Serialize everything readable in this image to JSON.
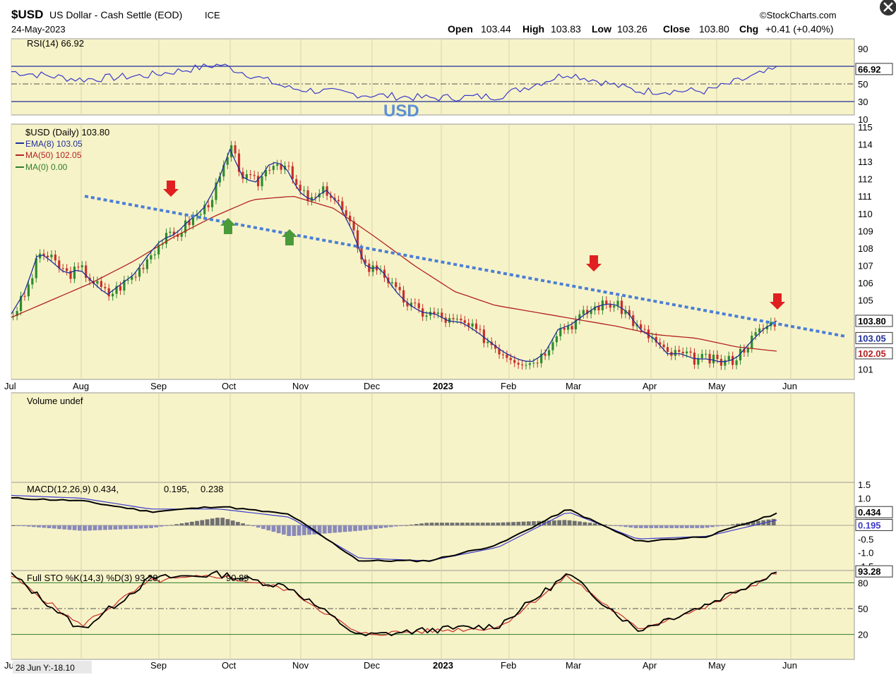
{
  "header": {
    "symbol": "$USD",
    "name": "US Dollar - Cash Settle (EOD)",
    "exchange": "ICE",
    "date": "24-May-2023",
    "brand": "©StockCharts.com",
    "ohlc": {
      "open_label": "Open",
      "open": "103.44",
      "high_label": "High",
      "high": "103.83",
      "low_label": "Low",
      "low": "103.26",
      "close_label": "Close",
      "close": "103.80",
      "chg_label": "Chg",
      "chg": "+0.41 (+0.40%)"
    }
  },
  "annotation": "USD",
  "status_readout": "28 Jun Y:-18.10",
  "legend": {
    "rsi": "RSI(14) 66.92",
    "price": "$USD (Daily) 103.80",
    "ema": "EMA(8) 103.05",
    "ma50": "MA(50) 102.05",
    "ma0": "MA(0) 0.00",
    "volume": "Volume undef",
    "macd": "MACD(12,26,9) 0.434,",
    "macd_signal": "0.195,",
    "macd_hist": "0.238",
    "sto": "Full STO %K(14,3) %D(3) 93.28,",
    "sto_d": "90.89"
  },
  "value_tags": {
    "rsi": "66.92",
    "close": "103.80",
    "ema": "103.05",
    "ma50": "102.05",
    "macd": "0.434",
    "macd_signal": "0.195",
    "sto": "93.28"
  },
  "colors": {
    "panel_bg": "#f7f3c8",
    "up_candle": "#2e8b2e",
    "down_candle": "#c8302a",
    "ema": "#1e2f9a",
    "ma50": "#b22222",
    "trendline": "#4a7fd6",
    "rsi": "#3b3bcc",
    "annotation": "#5b8fd6"
  },
  "chart_data": [
    {
      "type": "line",
      "name": "RSI(14)",
      "x": [
        "Jul",
        "Aug",
        "Sep",
        "Oct",
        "Nov",
        "Dec",
        "2023",
        "Feb",
        "Mar",
        "Apr",
        "May",
        "24-May"
      ],
      "series": [
        {
          "name": "RSI(14)",
          "values": [
            64,
            55,
            60,
            72,
            45,
            38,
            34,
            36,
            62,
            42,
            42,
            66.92
          ]
        }
      ],
      "ylim": [
        10,
        90
      ],
      "yticks": [
        "90",
        "70",
        "50",
        "30",
        "10"
      ],
      "reference_lines": [
        70,
        50,
        30
      ]
    },
    {
      "type": "candlestick",
      "title": "$USD (Daily) 103.80",
      "xlabels": [
        "Jul",
        "Aug",
        "Sep",
        "Oct",
        "Nov",
        "Dec",
        "2023",
        "Feb",
        "Mar",
        "Apr",
        "May",
        "Jun"
      ],
      "ylim": [
        100.5,
        115
      ],
      "yticks": [
        "115",
        "114",
        "113",
        "112",
        "111",
        "110",
        "109",
        "108",
        "107",
        "106",
        "105",
        "101"
      ],
      "closes_weekly_approx": [
        104.2,
        105.5,
        107.8,
        107.2,
        106.5,
        106.8,
        106.0,
        105.3,
        105.9,
        106.5,
        107.6,
        108.5,
        108.8,
        109.6,
        110.2,
        111.6,
        113.7,
        112.0,
        111.8,
        113.0,
        112.8,
        111.3,
        110.7,
        111.4,
        110.5,
        108.9,
        106.8,
        106.9,
        105.6,
        104.8,
        104.3,
        104.2,
        103.8,
        103.7,
        103.2,
        102.6,
        102.0,
        101.6,
        101.4,
        101.9,
        103.3,
        103.6,
        104.2,
        104.7,
        104.8,
        104.4,
        103.3,
        102.8,
        101.9,
        101.9,
        101.6,
        101.6,
        101.4,
        101.6,
        102.5,
        103.3,
        103.8
      ],
      "series": [
        {
          "name": "EMA(8)",
          "last": 103.05
        },
        {
          "name": "MA(50)",
          "last": 102.05
        },
        {
          "name": "MA(0)",
          "last": 0.0
        }
      ],
      "trendline": {
        "from": {
          "x": "Jul 2022",
          "y": 111.0
        },
        "to": {
          "x": "Jun 2023",
          "y": 102.9
        }
      },
      "markers": [
        {
          "type": "down-arrow",
          "color": "red",
          "x": "Sep"
        },
        {
          "type": "up-arrow",
          "color": "green",
          "x": "Oct"
        },
        {
          "type": "up-arrow",
          "color": "green",
          "x": "Nov"
        },
        {
          "type": "down-arrow",
          "color": "red",
          "x": "Mar"
        },
        {
          "type": "down-arrow",
          "color": "red",
          "x": "24-May"
        }
      ],
      "last": {
        "open": 103.44,
        "high": 103.83,
        "low": 103.26,
        "close": 103.8
      }
    },
    {
      "type": "bar",
      "name": "Volume undef",
      "values": []
    },
    {
      "type": "line",
      "name": "MACD(12,26,9)",
      "x": [
        "Jul",
        "Aug",
        "Sep",
        "Oct",
        "Nov",
        "Dec",
        "2023",
        "Feb",
        "Mar",
        "Apr",
        "May",
        "24-May"
      ],
      "series": [
        {
          "name": "MACD",
          "values": [
            1.0,
            0.9,
            0.5,
            0.7,
            0.4,
            -1.3,
            -1.3,
            -0.7,
            0.6,
            -0.6,
            -0.4,
            0.434
          ]
        },
        {
          "name": "Signal",
          "values": [
            1.1,
            1.0,
            0.6,
            0.6,
            0.3,
            -1.2,
            -1.3,
            -0.8,
            0.5,
            -0.5,
            -0.4,
            0.195
          ]
        },
        {
          "name": "Histogram",
          "values": [
            0.0,
            -0.2,
            -0.1,
            0.3,
            -0.4,
            -0.2,
            0.1,
            0.1,
            0.2,
            -0.1,
            -0.1,
            0.238
          ]
        }
      ],
      "ylim": [
        -1.5,
        1.5
      ],
      "yticks": [
        "1.5",
        "1.0",
        "0.5",
        "0.0",
        "-0.5",
        "-1.0",
        "-1.5"
      ]
    },
    {
      "type": "line",
      "name": "Full STO %K(14,3) %D(3)",
      "x": [
        "Jul",
        "Aug",
        "Sep",
        "Oct",
        "Nov",
        "Dec",
        "2023",
        "Feb",
        "Mar",
        "Apr",
        "May",
        "24-May"
      ],
      "series": [
        {
          "name": "%K",
          "values": [
            90,
            25,
            85,
            90,
            75,
            18,
            25,
            30,
            90,
            25,
            55,
            93.28
          ]
        },
        {
          "name": "%D",
          "values": [
            88,
            30,
            82,
            88,
            72,
            20,
            24,
            28,
            88,
            26,
            52,
            90.89
          ]
        }
      ],
      "ylim": [
        0,
        100
      ],
      "yticks": [
        "80",
        "50",
        "20"
      ],
      "reference_lines": [
        80,
        50,
        20
      ]
    }
  ]
}
